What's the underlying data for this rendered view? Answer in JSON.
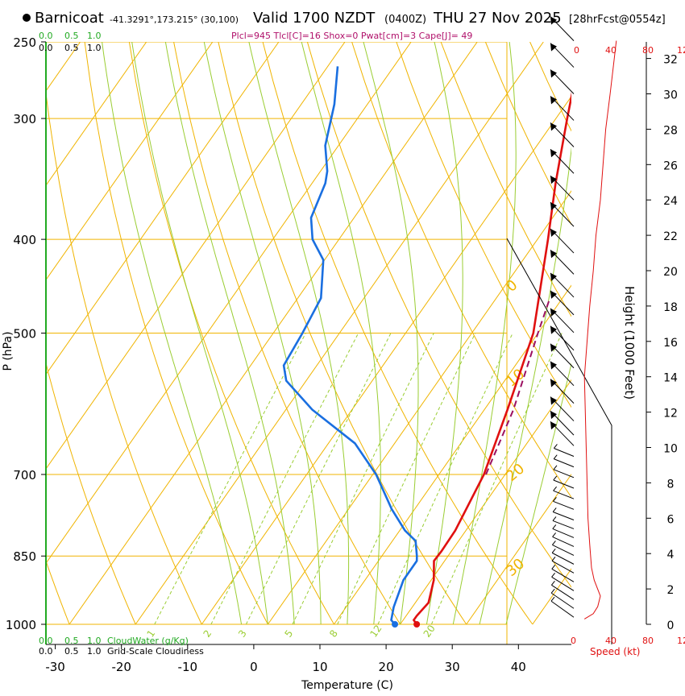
{
  "header": {
    "site": "Barnicoat",
    "coords": "-41.3291°,173.215° (30,100)",
    "valid": "Valid 1700 NZDT",
    "utc": "(0400Z)",
    "date": "THU 27 Nov 2025",
    "fcst": "[28hrFcst@0554z]",
    "indices": "Plcl=945 Tlcl[C]=16 Shox=0 Pwat[cm]=3 Cape[J]= 49"
  },
  "colors": {
    "temperature": "#e01010",
    "dewpoint": "#1a6fe0",
    "parcel": "#9b1060",
    "isotherm": "#f0b400",
    "dry_adiabat": "#f0b400",
    "moist_adiabat": "#9acd32",
    "mixing_ratio": "#9acd32",
    "cloud": "#22aa22",
    "wind_speed": "#e01010",
    "indices": "#b0106a"
  },
  "chart_data": {
    "type": "line",
    "title": "Skew-T log-P sounding",
    "xlabel": "Temperature (C)",
    "ylabel": "P (hPa)",
    "xlim": [
      -34,
      36
    ],
    "ylim": [
      1000,
      250
    ],
    "x_ticks": [
      -30,
      -20,
      -10,
      0,
      10,
      20,
      30,
      40
    ],
    "y_ticks": [
      250,
      300,
      400,
      500,
      700,
      850,
      1000
    ],
    "mixing_ratio_labels": [
      "1",
      "2",
      "3",
      "5",
      "8",
      "12",
      "20"
    ],
    "dry_adiabat_labels": [
      "40",
      "30",
      "20",
      "10",
      "0",
      "-10",
      "-20",
      "-30"
    ],
    "isotherm_labels": [
      "10",
      "0",
      "-10",
      "-20",
      "-30"
    ],
    "isotherm_side_labels": [
      "0",
      "10",
      "20",
      "30"
    ],
    "series": [
      {
        "name": "Temperature",
        "points": [
          [
            1000,
            22.5
          ],
          [
            990,
            21.6
          ],
          [
            980,
            21.6
          ],
          [
            950,
            22.0
          ],
          [
            900,
            20.4
          ],
          [
            860,
            18.4
          ],
          [
            840,
            18.5
          ],
          [
            800,
            18.4
          ],
          [
            700,
            16.8
          ],
          [
            600,
            13.5
          ],
          [
            500,
            9.3
          ],
          [
            400,
            1.6
          ],
          [
            350,
            -3.2
          ],
          [
            300,
            -8.3
          ],
          [
            280,
            -10.5
          ],
          [
            265,
            -12.6
          ]
        ]
      },
      {
        "name": "Dewpoint",
        "points": [
          [
            1000,
            19.2
          ],
          [
            990,
            18.2
          ],
          [
            960,
            17.2
          ],
          [
            900,
            15.8
          ],
          [
            860,
            15.8
          ],
          [
            850,
            15.3
          ],
          [
            820,
            13.5
          ],
          [
            800,
            10.8
          ],
          [
            760,
            6.5
          ],
          [
            700,
            0.5
          ],
          [
            650,
            -6.0
          ],
          [
            600,
            -16.0
          ],
          [
            560,
            -23.0
          ],
          [
            540,
            -25.0
          ],
          [
            500,
            -25.6
          ],
          [
            460,
            -26.5
          ],
          [
            420,
            -30.2
          ],
          [
            400,
            -34.0
          ],
          [
            380,
            -36.5
          ],
          [
            350,
            -38.0
          ],
          [
            340,
            -39.0
          ],
          [
            320,
            -42.0
          ],
          [
            290,
            -45.0
          ],
          [
            265,
            -48.5
          ]
        ]
      },
      {
        "name": "Parcel",
        "dashed": true,
        "points": [
          [
            700,
            17.1
          ],
          [
            600,
            14.4
          ],
          [
            500,
            10.0
          ],
          [
            460,
            8.1
          ]
        ]
      }
    ],
    "cloud": {
      "title1": "CloudWater (g/Kg)",
      "title2": "Grid-Scale Cloudiness",
      "ticks1": [
        "0.0",
        "0.5",
        "1.0"
      ],
      "ticks2": [
        "0.0",
        "0.5",
        "1.0"
      ]
    },
    "height": {
      "label": "Height (1000 Feet)",
      "ticks": [
        "0",
        "2",
        "4",
        "6",
        "8",
        "10",
        "12",
        "14",
        "16",
        "18",
        "20",
        "22",
        "24",
        "26",
        "28",
        "30",
        "32"
      ],
      "ticks_values": [
        0,
        2,
        4,
        6,
        8,
        10,
        12,
        14,
        16,
        18,
        20,
        22,
        24,
        26,
        28,
        30,
        32
      ]
    },
    "wind_speed": {
      "label": "Speed (kt)",
      "ticks": [
        "0",
        "40",
        "80",
        "12"
      ],
      "profile": [
        [
          0.3,
          12
        ],
        [
          0.6,
          22
        ],
        [
          1.0,
          27
        ],
        [
          1.6,
          30
        ],
        [
          2.5,
          23
        ],
        [
          3.2,
          20
        ],
        [
          4.5,
          18
        ],
        [
          6,
          16
        ],
        [
          8,
          15
        ],
        [
          10,
          14
        ],
        [
          12,
          13
        ],
        [
          14,
          12
        ],
        [
          16,
          15
        ],
        [
          18,
          18
        ],
        [
          20,
          22
        ],
        [
          22,
          25
        ],
        [
          24,
          30
        ],
        [
          26,
          33
        ],
        [
          28,
          36
        ],
        [
          30,
          41
        ],
        [
          33,
          48
        ]
      ]
    },
    "wind_barbs_ft": [
      0.4,
      0.9,
      1.4,
      1.9,
      2.4,
      2.9,
      3.4,
      3.9,
      4.4,
      4.9,
      5.4,
      5.9,
      6.5,
      7.1,
      7.7,
      8.3,
      8.9,
      9.5,
      10.1,
      10.7,
      11.5,
      12.5,
      13.5,
      14.5,
      15.5,
      16.5,
      17.5,
      18.5,
      19.8,
      21,
      22.5,
      24,
      25.5,
      27,
      28.5,
      30,
      31.5,
      33
    ]
  }
}
